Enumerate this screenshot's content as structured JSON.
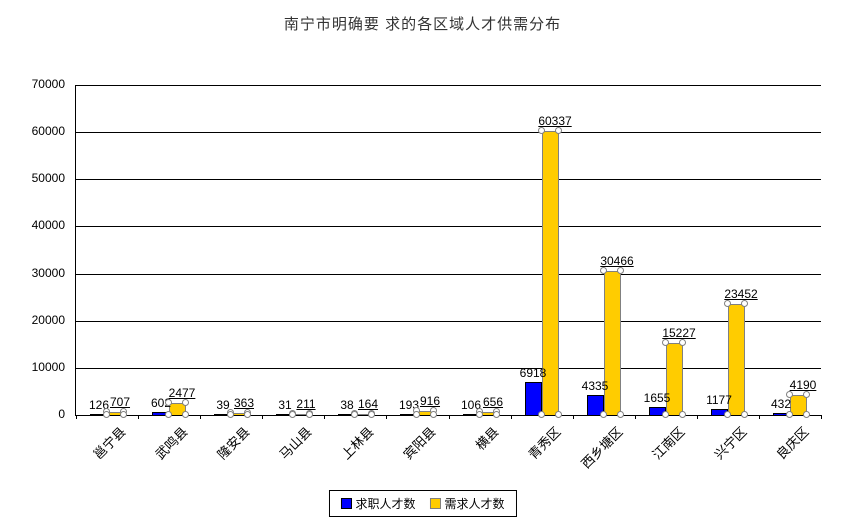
{
  "title": "南宁市明确要 求的各区域人才供需分布",
  "chart_data": {
    "type": "bar",
    "categories": [
      "邕宁县",
      "武鸣县",
      "隆安县",
      "马山县",
      "上林县",
      "宾阳县",
      "横县",
      "青秀区",
      "西乡塘区",
      "江南区",
      "兴宁区",
      "良庆区"
    ],
    "series": [
      {
        "name": "求职人才数",
        "color": "#0000FF",
        "values": [
          126,
          602,
          39,
          31,
          38,
          193,
          106,
          6918,
          4335,
          1655,
          1177,
          432
        ]
      },
      {
        "name": "需求人才数",
        "color": "#FFCC00",
        "values": [
          707,
          2477,
          363,
          211,
          164,
          916,
          656,
          60337,
          30466,
          15227,
          23452,
          4190
        ]
      }
    ],
    "ylim": [
      0,
      70000
    ],
    "yticks": [
      0,
      10000,
      20000,
      30000,
      40000,
      50000,
      60000,
      70000
    ],
    "grid": true,
    "value_labels": true,
    "legend_position": "bottom",
    "selected_series": "需求人才数"
  },
  "colors": {
    "background": "#FFFFFF",
    "axis": "#000000",
    "grid": "#000000",
    "title_text": "#333333",
    "selection_handle": "#FFFFFF",
    "selection_handle_border": "#808080"
  }
}
